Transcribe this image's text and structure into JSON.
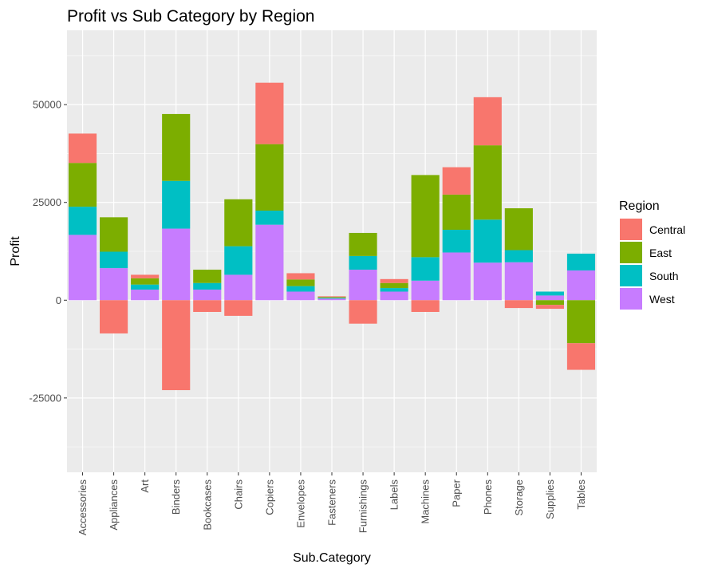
{
  "chart_data": {
    "type": "bar",
    "stacked": true,
    "title": "Profit vs Sub Category by Region",
    "xlabel": "Sub.Category",
    "ylabel": "Profit",
    "ylim": [
      -44000,
      69000
    ],
    "yticks": [
      -25000,
      0,
      25000,
      50000
    ],
    "ytick_labels": [
      "-25000",
      "0",
      "25000",
      "50000"
    ],
    "grid": true,
    "legend": {
      "title": "Region",
      "position": "right"
    },
    "categories": [
      "Accessories",
      "Appliances",
      "Art",
      "Binders",
      "Bookcases",
      "Chairs",
      "Copiers",
      "Envelopes",
      "Fasteners",
      "Furnishings",
      "Labels",
      "Machines",
      "Paper",
      "Phones",
      "Storage",
      "Supplies",
      "Tables"
    ],
    "series": [
      {
        "name": "Central",
        "color": "#F8766D",
        "values": [
          7500,
          -8500,
          900,
          -23000,
          -3000,
          -4000,
          15700,
          1600,
          200,
          -6000,
          1000,
          -3000,
          7000,
          12300,
          -2000,
          -1000,
          -6800
        ]
      },
      {
        "name": "East",
        "color": "#7CAE00",
        "values": [
          11200,
          8800,
          1600,
          17100,
          3400,
          12000,
          17000,
          1700,
          200,
          5900,
          1300,
          21000,
          9000,
          19000,
          10700,
          -1200,
          -11000
        ]
      },
      {
        "name": "South",
        "color": "#00BFC4",
        "values": [
          7200,
          4200,
          1300,
          12200,
          1700,
          7300,
          3600,
          1400,
          200,
          3500,
          900,
          6000,
          5800,
          11000,
          3100,
          1000,
          4300
        ]
      },
      {
        "name": "West",
        "color": "#C77CFF",
        "values": [
          16700,
          8200,
          2700,
          18300,
          2700,
          6500,
          19300,
          2200,
          400,
          7800,
          2200,
          5000,
          12200,
          9600,
          9700,
          1200,
          7600
        ]
      }
    ]
  }
}
